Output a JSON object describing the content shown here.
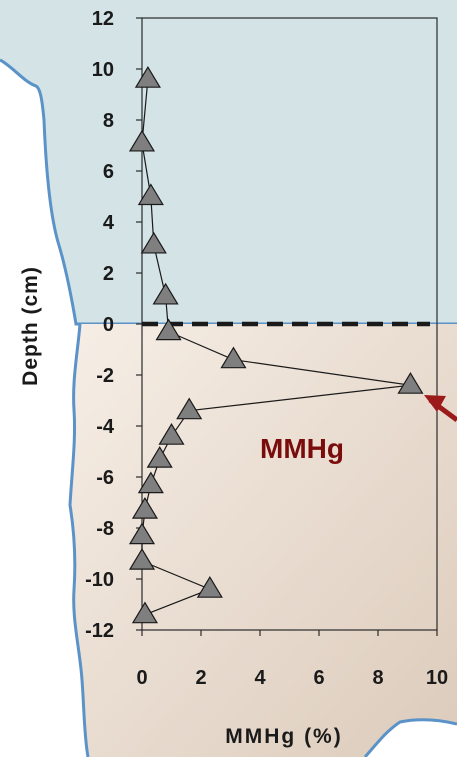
{
  "chart_data": {
    "type": "line",
    "title": "",
    "xlabel": "MMHg (%)",
    "ylabel": "Depth (cm)",
    "xlim": [
      0,
      10
    ],
    "ylim": [
      -12,
      12
    ],
    "x_ticks": [
      "0",
      "2",
      "4",
      "6",
      "8",
      "10"
    ],
    "y_ticks": [
      "12",
      "10",
      "8",
      "6",
      "4",
      "2",
      "0",
      "-2",
      "-4",
      "-6",
      "-8",
      "-10",
      "-12"
    ],
    "grid": false,
    "legend": "none",
    "marker": "triangle",
    "series": [
      {
        "x": [
          0.2,
          0.0,
          0.3,
          0.4,
          0.8,
          0.9,
          3.1,
          9.1,
          1.6,
          1.0,
          0.6,
          0.3,
          0.1,
          0.0,
          0.0,
          2.3,
          0.1
        ],
        "y": [
          9.6,
          7.1,
          5.0,
          3.1,
          1.1,
          -0.3,
          -1.4,
          -2.4,
          -3.4,
          -4.4,
          -5.3,
          -6.3,
          -7.3,
          -8.3,
          -9.3,
          -10.4,
          -11.4
        ]
      }
    ],
    "annotation": "MMHg",
    "zero_line": "dashed",
    "regions": {
      "upper": "water",
      "lower": "sediment"
    },
    "colors": {
      "water": "#d3e3e6",
      "sediment": "#e9dccf",
      "boundary": "#5b93c8",
      "marker_fill": "#7f7f7f",
      "annotation": "#7a0c0c",
      "arrow": "#9b1b1b"
    }
  }
}
